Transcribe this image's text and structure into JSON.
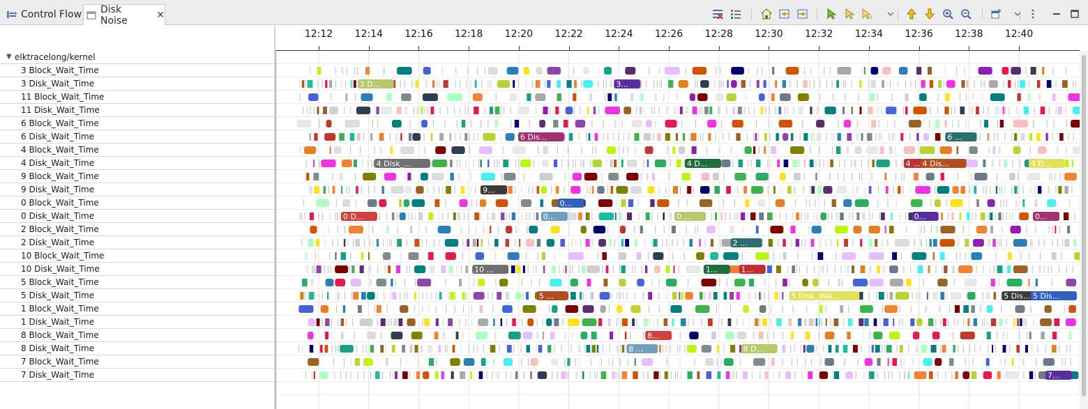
{
  "tabs": [
    {
      "label": "Control Flow",
      "icon": "control-flow-icon",
      "active": false
    },
    {
      "label": "Disk Noise",
      "icon": "disk-noise-view-icon",
      "active": true,
      "close": "✕"
    }
  ],
  "toolbar_icons": [
    "remove-filter-icon",
    "show-legend-icon",
    "reset-timescale-icon",
    "previous-event-icon",
    "next-event-icon",
    "select-next-item-icon",
    "select-previous-item-icon",
    "add-bookmark-icon",
    "previous-marker-icon",
    "next-marker-icon",
    "zoom-in-icon",
    "zoom-out-icon",
    "pin-view-icon",
    "view-menu-icon",
    "minimize-icon",
    "maximize-icon"
  ],
  "tree": {
    "root": "elktracelong/kernel",
    "rows": [
      "3 Block_Wait_Time",
      "3 Disk_Wait_Time",
      "11 Block_Wait_Time",
      "11 Disk_Wait_Time",
      "6 Block_Wait_Time",
      "6 Disk_Wait_Time",
      "4 Block_Wait_Time",
      "4 Disk_Wait_Time",
      "9 Block_Wait_Time",
      "9 Disk_Wait_Time",
      "0 Block_Wait_Time",
      "0 Disk_Wait_Time",
      "2 Block_Wait_Time",
      "2 Disk_Wait_Time",
      "10 Block_Wait_Time",
      "10 Disk_Wait_Time",
      "5 Block_Wait_Time",
      "5 Disk_Wait_Time",
      "1 Block_Wait_Time",
      "1 Disk_Wait_Time",
      "8 Block_Wait_Time",
      "8 Disk_Wait_Time",
      "7 Block_Wait_Time",
      "7 Disk_Wait_Time"
    ]
  },
  "time_axis": {
    "ticks": [
      "12:12",
      "12:14",
      "12:16",
      "12:18",
      "12:20",
      "12:22",
      "12:24",
      "12:26",
      "12:28",
      "12:30",
      "12:32",
      "12:34",
      "12:36",
      "12:38",
      "12:40"
    ]
  },
  "labeled_states": [
    {
      "row": 1,
      "time": "12:13:40",
      "text": "3 D..."
    },
    {
      "row": 1,
      "time": "12:23:55",
      "text": "3..."
    },
    {
      "row": 5,
      "time": "12:20:05",
      "text": "6 Dis..."
    },
    {
      "row": 5,
      "time": "12:37:10",
      "text": "6 ..."
    },
    {
      "row": 7,
      "time": "12:14:20",
      "text": "4 Disk_..."
    },
    {
      "row": 7,
      "time": "12:26:45",
      "text": "4 D..."
    },
    {
      "row": 7,
      "time": "12:35:30",
      "text": "4 ..."
    },
    {
      "row": 7,
      "time": "12:36:10",
      "text": "4 Dis..."
    },
    {
      "row": 7,
      "time": "12:40:30",
      "text": "4 D..."
    },
    {
      "row": 9,
      "time": "12:18:35",
      "text": "9..."
    },
    {
      "row": 10,
      "time": "12:21:40",
      "text": "0..."
    },
    {
      "row": 11,
      "time": "12:13:00",
      "text": "0 D..."
    },
    {
      "row": 11,
      "time": "12:21:00",
      "text": "0..."
    },
    {
      "row": 11,
      "time": "12:26:20",
      "text": "0 ..."
    },
    {
      "row": 11,
      "time": "12:35:50",
      "text": "0..."
    },
    {
      "row": 11,
      "time": "12:40:40",
      "text": "0..."
    },
    {
      "row": 13,
      "time": "12:28:35",
      "text": "2 ..."
    },
    {
      "row": 15,
      "time": "12:18:15",
      "text": "10 ..."
    },
    {
      "row": 15,
      "time": "12:27:30",
      "text": "1..."
    },
    {
      "row": 15,
      "time": "12:28:55",
      "text": "1..."
    },
    {
      "row": 17,
      "time": "12:20:50",
      "text": "5 ..."
    },
    {
      "row": 17,
      "time": "12:30:55",
      "text": "5 Disk_Wai..."
    },
    {
      "row": 17,
      "time": "12:39:25",
      "text": "5 Dis..."
    },
    {
      "row": 17,
      "time": "12:40:35",
      "text": "5 Dis..."
    },
    {
      "row": 20,
      "time": "12:25:10",
      "text": "8..."
    },
    {
      "row": 21,
      "time": "12:24:25",
      "text": "8 ..."
    },
    {
      "row": 21,
      "time": "12:29:00",
      "text": "8 D..."
    },
    {
      "row": 23,
      "time": "12:41:10",
      "text": "7..."
    }
  ]
}
